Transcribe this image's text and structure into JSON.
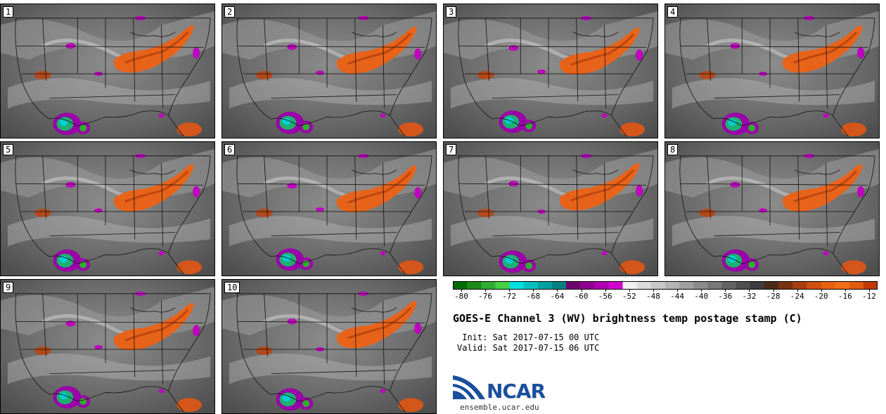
{
  "panels": [
    "1",
    "2",
    "3",
    "4",
    "5",
    "6",
    "7",
    "8",
    "9",
    "10"
  ],
  "colorbar": {
    "ticks": [
      "-80",
      "-76",
      "-72",
      "-68",
      "-64",
      "-60",
      "-56",
      "-52",
      "-48",
      "-44",
      "-40",
      "-36",
      "-32",
      "-28",
      "-24",
      "-20",
      "-16",
      "-12"
    ],
    "colors": [
      "#006b00",
      "#1a8c1a",
      "#2fae2f",
      "#45d045",
      "#00e0e0",
      "#00c0c0",
      "#00a0a0",
      "#008080",
      "#6e006e",
      "#900090",
      "#b000b0",
      "#d000d0",
      "#f0f0f0",
      "#dcdcdc",
      "#c8c8c8",
      "#b4b4b4",
      "#a0a0a0",
      "#8c8c8c",
      "#787878",
      "#646464",
      "#505050",
      "#3c3c3c",
      "#4a2a1a",
      "#7a3310",
      "#a84010",
      "#d05010",
      "#e86010",
      "#f07018",
      "#e05a10",
      "#c03800"
    ]
  },
  "title": "GOES-E Channel 3 (WV) brightness temp postage stamp (C)",
  "init": " Init: Sat 2017-07-15 00 UTC",
  "valid": "Valid: Sat 2017-07-15 06 UTC",
  "logo": {
    "text": "NCAR",
    "url": "ensemble.ucar.edu",
    "color": "#1a4f9c"
  }
}
